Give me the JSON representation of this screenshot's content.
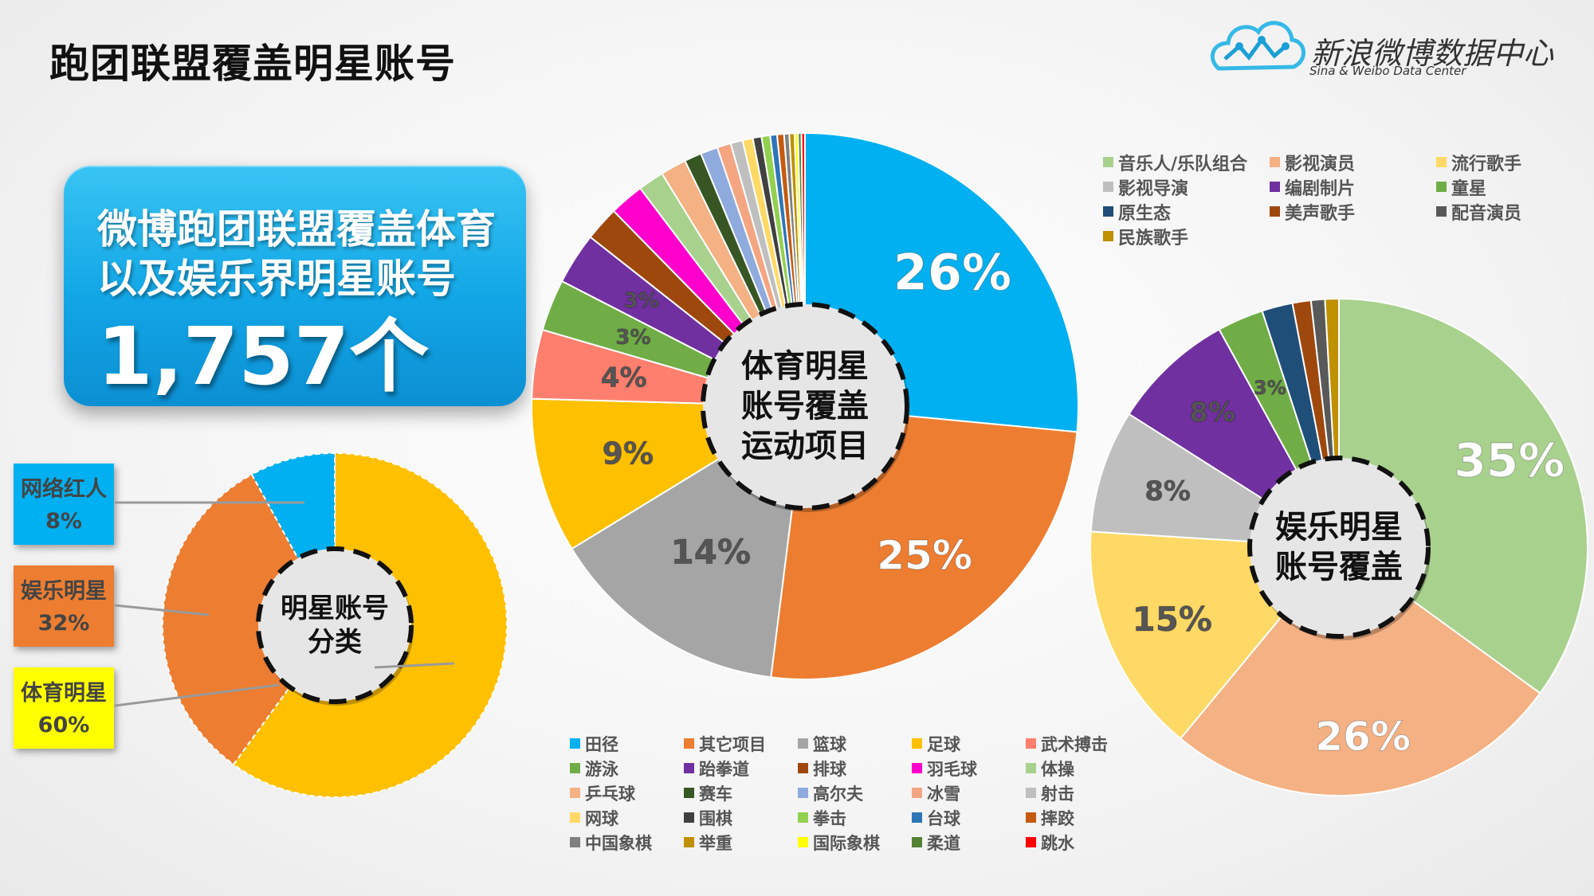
{
  "page": {
    "title": "跑团联盟覆盖明星账号"
  },
  "logo": {
    "cn": "新浪微博数据中心",
    "en": "Sina & Weibo Data Center"
  },
  "callout": {
    "line1": "微博跑团联盟覆盖体育",
    "line2": "以及娱乐界明星账号",
    "count": "1,757个"
  },
  "chart_data": [
    {
      "id": "celebrity-types",
      "type": "pie",
      "center_label": [
        "明星账号",
        "分类"
      ],
      "slices": [
        {
          "name": "体育明星",
          "value": 60,
          "label": "60%",
          "color": "#FFC000"
        },
        {
          "name": "娱乐明星",
          "value": 32,
          "label": "32%",
          "color": "#ED7D31"
        },
        {
          "name": "网络红人",
          "value": 8,
          "label": "8%",
          "color": "#00B0F0"
        }
      ],
      "side_labels": [
        {
          "name": "网络红人",
          "pct": "8%",
          "color": "#00B0F0"
        },
        {
          "name": "娱乐明星",
          "pct": "32%",
          "color": "#ED7D31"
        },
        {
          "name": "体育明星",
          "pct": "60%",
          "color": "#FFFF00"
        }
      ]
    },
    {
      "id": "sports-coverage",
      "type": "pie",
      "center_label": [
        "体育明星",
        "账号覆盖",
        "运动项目"
      ],
      "slices": [
        {
          "name": "田径",
          "value": 26,
          "label": "26%",
          "color": "#00B0F0"
        },
        {
          "name": "其它项目",
          "value": 25,
          "label": "25%",
          "color": "#ED7D31"
        },
        {
          "name": "篮球",
          "value": 14,
          "label": "14%",
          "color": "#A5A5A5"
        },
        {
          "name": "足球",
          "value": 9,
          "label": "9%",
          "color": "#FFC000"
        },
        {
          "name": "武术搏击",
          "value": 4,
          "label": "4%",
          "color": "#FF7F6E"
        },
        {
          "name": "游泳",
          "value": 3,
          "label": "3%",
          "color": "#70AD47"
        },
        {
          "name": "跆拳道",
          "value": 3,
          "label": "3%",
          "color": "#7030A0"
        },
        {
          "name": "排球",
          "value": 2,
          "label": "",
          "color": "#9E480E"
        },
        {
          "name": "羽毛球",
          "value": 2,
          "label": "",
          "color": "#FF00CC"
        },
        {
          "name": "体操",
          "value": 1.5,
          "label": "",
          "color": "#A9D18E"
        },
        {
          "name": "乒乓球",
          "value": 1.5,
          "label": "",
          "color": "#F4B183"
        },
        {
          "name": "赛车",
          "value": 1,
          "label": "",
          "color": "#375623"
        },
        {
          "name": "高尔夫",
          "value": 1,
          "label": "",
          "color": "#8FAADC"
        },
        {
          "name": "冰雪",
          "value": 0.8,
          "label": "",
          "color": "#F4A582"
        },
        {
          "name": "射击",
          "value": 0.7,
          "label": "",
          "color": "#BFBFBF"
        },
        {
          "name": "网球",
          "value": 0.6,
          "label": "",
          "color": "#FFD966"
        },
        {
          "name": "围棋",
          "value": 0.5,
          "label": "",
          "color": "#404040"
        },
        {
          "name": "拳击",
          "value": 0.5,
          "label": "",
          "color": "#92D050"
        },
        {
          "name": "台球",
          "value": 0.4,
          "label": "",
          "color": "#2E75B6"
        },
        {
          "name": "摔跤",
          "value": 0.4,
          "label": "",
          "color": "#C55A11"
        },
        {
          "name": "中国象棋",
          "value": 0.3,
          "label": "",
          "color": "#7F7F7F"
        },
        {
          "name": "举重",
          "value": 0.3,
          "label": "",
          "color": "#BF9000"
        },
        {
          "name": "国际象棋",
          "value": 0.2,
          "label": "",
          "color": "#FFFF00"
        },
        {
          "name": "柔道",
          "value": 0.2,
          "label": "",
          "color": "#548235"
        },
        {
          "name": "跳水",
          "value": 0.2,
          "label": "",
          "color": "#FF0000"
        }
      ]
    },
    {
      "id": "entertainment-coverage",
      "type": "pie",
      "center_label": [
        "娱乐明星",
        "账号覆盖"
      ],
      "slices": [
        {
          "name": "音乐人/乐队组合",
          "value": 35,
          "label": "35%",
          "color": "#A9D18E"
        },
        {
          "name": "影视演员",
          "value": 26,
          "label": "26%",
          "color": "#F4B183"
        },
        {
          "name": "流行歌手",
          "value": 15,
          "label": "15%",
          "color": "#FFD966"
        },
        {
          "name": "影视导演",
          "value": 8,
          "label": "8%",
          "color": "#BFBFBF"
        },
        {
          "name": "编剧制片",
          "value": 8,
          "label": "8%",
          "color": "#7030A0"
        },
        {
          "name": "童星",
          "value": 3,
          "label": "3%",
          "color": "#70AD47"
        },
        {
          "name": "原生态",
          "value": 2,
          "label": "",
          "color": "#1F4E79"
        },
        {
          "name": "美声歌手",
          "value": 1.2,
          "label": "",
          "color": "#9E480E"
        },
        {
          "name": "配音演员",
          "value": 0.9,
          "label": "",
          "color": "#595959"
        },
        {
          "name": "民族歌手",
          "value": 0.9,
          "label": "",
          "color": "#BF9000"
        }
      ]
    }
  ]
}
